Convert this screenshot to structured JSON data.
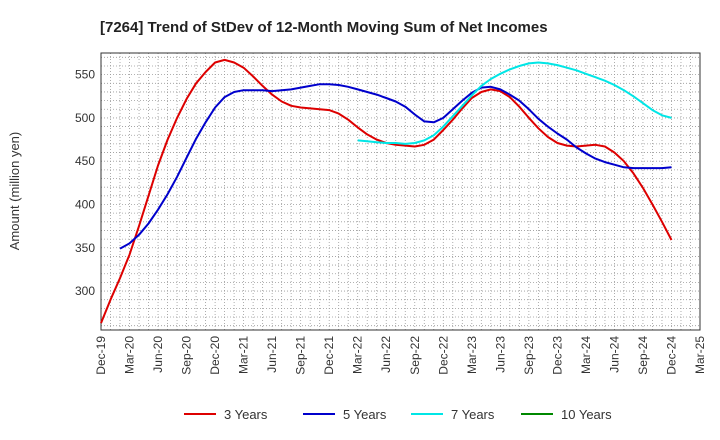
{
  "chart_data": {
    "type": "line",
    "title": "[7264]  Trend of StDev of 12-Month Moving Sum of Net Incomes",
    "xlabel": "",
    "ylabel": "Amount (million yen)",
    "x_ticks": [
      "Dec-19",
      "Mar-20",
      "Jun-20",
      "Sep-20",
      "Dec-20",
      "Mar-21",
      "Jun-21",
      "Sep-21",
      "Dec-21",
      "Mar-22",
      "Jun-22",
      "Sep-22",
      "Dec-22",
      "Mar-23",
      "Jun-23",
      "Sep-23",
      "Dec-23",
      "Mar-24",
      "Jun-24",
      "Sep-24",
      "Dec-24",
      "Mar-25"
    ],
    "y_ticks": [
      300,
      350,
      400,
      450,
      500,
      550
    ],
    "ylim": [
      255,
      575
    ],
    "grid": true,
    "legend_position": "bottom",
    "series": [
      {
        "name": "3 Years",
        "color": "#dd0000",
        "points": [
          [
            "Dec-19",
            263
          ],
          [
            "Jan-20",
            290
          ],
          [
            "Feb-20",
            315
          ],
          [
            "Mar-20",
            342
          ],
          [
            "Apr-20",
            375
          ],
          [
            "May-20",
            410
          ],
          [
            "Jun-20",
            445
          ],
          [
            "Jul-20",
            475
          ],
          [
            "Aug-20",
            500
          ],
          [
            "Sep-20",
            522
          ],
          [
            "Oct-20",
            540
          ],
          [
            "Nov-20",
            553
          ],
          [
            "Dec-20",
            564
          ],
          [
            "Jan-21",
            567
          ],
          [
            "Feb-21",
            564
          ],
          [
            "Mar-21",
            558
          ],
          [
            "Apr-21",
            548
          ],
          [
            "May-21",
            537
          ],
          [
            "Jun-21",
            527
          ],
          [
            "Jul-21",
            519
          ],
          [
            "Aug-21",
            514
          ],
          [
            "Sep-21",
            512
          ],
          [
            "Oct-21",
            511
          ],
          [
            "Nov-21",
            510
          ],
          [
            "Dec-21",
            509
          ],
          [
            "Jan-22",
            505
          ],
          [
            "Feb-22",
            498
          ],
          [
            "Mar-22",
            489
          ],
          [
            "Apr-22",
            481
          ],
          [
            "May-22",
            475
          ],
          [
            "Jun-22",
            471
          ],
          [
            "Jul-22",
            469
          ],
          [
            "Aug-22",
            468
          ],
          [
            "Sep-22",
            467
          ],
          [
            "Oct-22",
            469
          ],
          [
            "Nov-22",
            475
          ],
          [
            "Dec-22",
            486
          ],
          [
            "Jan-23",
            498
          ],
          [
            "Feb-23",
            511
          ],
          [
            "Mar-23",
            523
          ],
          [
            "Apr-23",
            530
          ],
          [
            "May-23",
            533
          ],
          [
            "Jun-23",
            531
          ],
          [
            "Jul-23",
            524
          ],
          [
            "Aug-23",
            513
          ],
          [
            "Sep-23",
            500
          ],
          [
            "Oct-23",
            488
          ],
          [
            "Nov-23",
            478
          ],
          [
            "Dec-23",
            471
          ],
          [
            "Jan-24",
            468
          ],
          [
            "Feb-24",
            467
          ],
          [
            "Mar-24",
            468
          ],
          [
            "Apr-24",
            469
          ],
          [
            "May-24",
            467
          ],
          [
            "Jun-24",
            460
          ],
          [
            "Jul-24",
            450
          ],
          [
            "Aug-24",
            436
          ],
          [
            "Sep-24",
            419
          ],
          [
            "Oct-24",
            400
          ],
          [
            "Nov-24",
            380
          ],
          [
            "Dec-24",
            359
          ]
        ]
      },
      {
        "name": "5 Years",
        "color": "#0000cc",
        "points": [
          [
            "Feb-20",
            349
          ],
          [
            "Mar-20",
            355
          ],
          [
            "Apr-20",
            365
          ],
          [
            "May-20",
            378
          ],
          [
            "Jun-20",
            394
          ],
          [
            "Jul-20",
            412
          ],
          [
            "Aug-20",
            432
          ],
          [
            "Sep-20",
            454
          ],
          [
            "Oct-20",
            476
          ],
          [
            "Nov-20",
            495
          ],
          [
            "Dec-20",
            512
          ],
          [
            "Jan-21",
            524
          ],
          [
            "Feb-21",
            530
          ],
          [
            "Mar-21",
            532
          ],
          [
            "Apr-21",
            532
          ],
          [
            "May-21",
            532
          ],
          [
            "Jun-21",
            531
          ],
          [
            "Jul-21",
            532
          ],
          [
            "Aug-21",
            533
          ],
          [
            "Sep-21",
            535
          ],
          [
            "Oct-21",
            537
          ],
          [
            "Nov-21",
            539
          ],
          [
            "Dec-21",
            539
          ],
          [
            "Jan-22",
            538
          ],
          [
            "Feb-22",
            536
          ],
          [
            "Mar-22",
            533
          ],
          [
            "Apr-22",
            530
          ],
          [
            "May-22",
            527
          ],
          [
            "Jun-22",
            523
          ],
          [
            "Jul-22",
            519
          ],
          [
            "Aug-22",
            513
          ],
          [
            "Sep-22",
            504
          ],
          [
            "Oct-22",
            496
          ],
          [
            "Nov-22",
            495
          ],
          [
            "Dec-22",
            500
          ],
          [
            "Jan-23",
            510
          ],
          [
            "Feb-23",
            520
          ],
          [
            "Mar-23",
            529
          ],
          [
            "Apr-23",
            535
          ],
          [
            "May-23",
            536
          ],
          [
            "Jun-23",
            533
          ],
          [
            "Jul-23",
            527
          ],
          [
            "Aug-23",
            520
          ],
          [
            "Sep-23",
            510
          ],
          [
            "Oct-23",
            499
          ],
          [
            "Nov-23",
            490
          ],
          [
            "Dec-23",
            482
          ],
          [
            "Jan-24",
            475
          ],
          [
            "Feb-24",
            466
          ],
          [
            "Mar-24",
            459
          ],
          [
            "Apr-24",
            453
          ],
          [
            "May-24",
            449
          ],
          [
            "Jun-24",
            446
          ],
          [
            "Jul-24",
            443
          ],
          [
            "Aug-24",
            442
          ],
          [
            "Sep-24",
            442
          ],
          [
            "Oct-24",
            442
          ],
          [
            "Nov-24",
            442
          ],
          [
            "Dec-24",
            443
          ]
        ]
      },
      {
        "name": "7 Years",
        "color": "#00e6e6",
        "points": [
          [
            "Mar-22",
            474
          ],
          [
            "Apr-22",
            473
          ],
          [
            "May-22",
            472
          ],
          [
            "Jun-22",
            471
          ],
          [
            "Jul-22",
            471
          ],
          [
            "Aug-22",
            470
          ],
          [
            "Sep-22",
            471
          ],
          [
            "Oct-22",
            474
          ],
          [
            "Nov-22",
            480
          ],
          [
            "Dec-22",
            490
          ],
          [
            "Jan-23",
            502
          ],
          [
            "Feb-23",
            514
          ],
          [
            "Mar-23",
            526
          ],
          [
            "Apr-23",
            537
          ],
          [
            "May-23",
            545
          ],
          [
            "Jun-23",
            551
          ],
          [
            "Jul-23",
            556
          ],
          [
            "Aug-23",
            560
          ],
          [
            "Sep-23",
            563
          ],
          [
            "Oct-23",
            564
          ],
          [
            "Nov-23",
            563
          ],
          [
            "Dec-23",
            561
          ],
          [
            "Jan-24",
            558
          ],
          [
            "Feb-24",
            555
          ],
          [
            "Mar-24",
            551
          ],
          [
            "Apr-24",
            547
          ],
          [
            "May-24",
            543
          ],
          [
            "Jun-24",
            538
          ],
          [
            "Jul-24",
            532
          ],
          [
            "Aug-24",
            525
          ],
          [
            "Sep-24",
            517
          ],
          [
            "Oct-24",
            509
          ],
          [
            "Nov-24",
            503
          ],
          [
            "Dec-24",
            500
          ]
        ]
      },
      {
        "name": "10 Years",
        "color": "#008800",
        "points": []
      }
    ]
  }
}
